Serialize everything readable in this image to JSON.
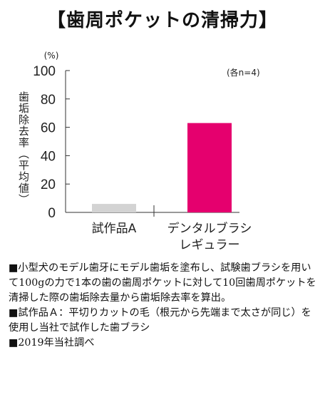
{
  "title": "【歯周ポケットの清掃力】",
  "chart_data": {
    "type": "bar",
    "unit_label": "(%)",
    "ylabel": "歯垢除去率（平均値）",
    "annotation": "(各n=4)",
    "ylim": [
      0,
      100
    ],
    "yticks": [
      "0",
      "20",
      "40",
      "60",
      "80",
      "100"
    ],
    "categories": [
      "試作品A",
      "デンタルブラシ\nレギュラー"
    ],
    "values": [
      6,
      63
    ],
    "colors": [
      "#d3d3d3",
      "#e5006e"
    ]
  },
  "notes": [
    "■小型犬のモデル歯牙にモデル歯垢を塗布し、試験歯ブラシを用いて100gの力で1本の歯の歯周ポケットに対して10回歯周ポケットを清掃した際の歯垢除去量から歯垢除去率を算出。",
    "■試作品Ａ：平切りカットの毛（根元から先端まで太さが同じ）を使用し当社で試作した歯ブラシ",
    "■2019年当社調べ"
  ]
}
